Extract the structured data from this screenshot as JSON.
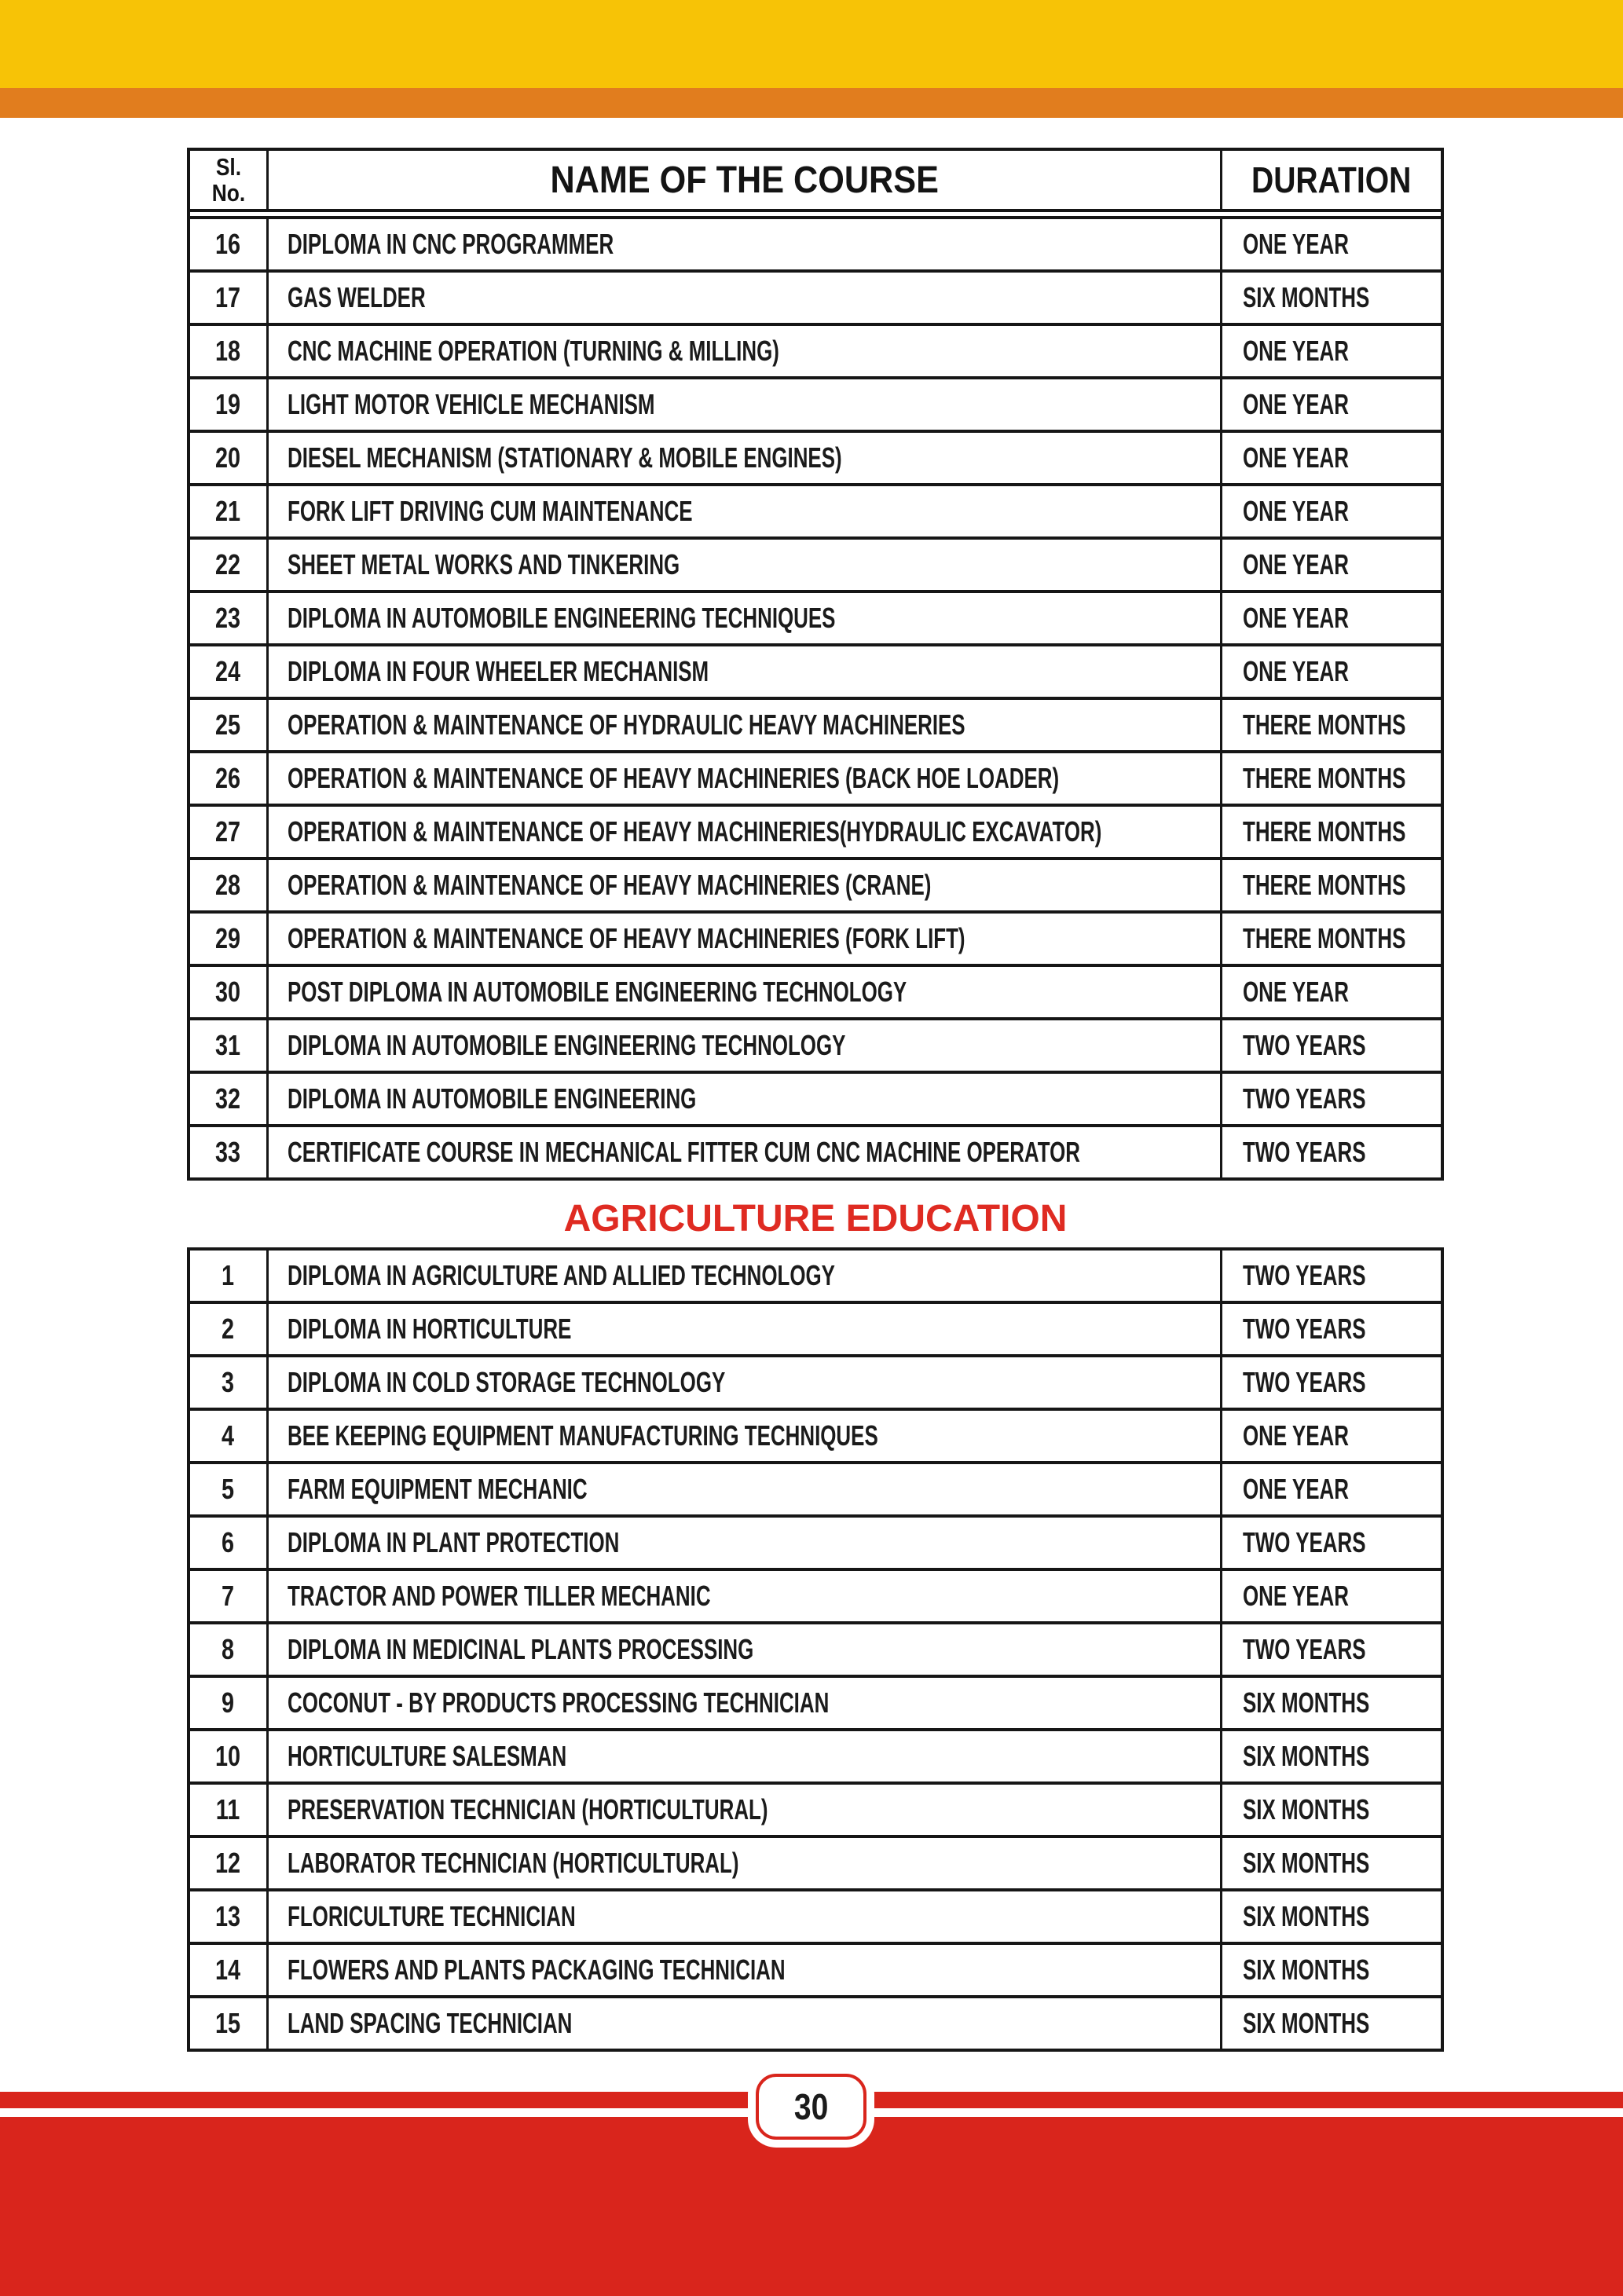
{
  "colors": {
    "band_yellow": "#F7C306",
    "band_orange": "#E17D1E",
    "footer_red": "#D9251C",
    "heading_red": "#DF2B22",
    "table_border": "#161616"
  },
  "table1": {
    "header": {
      "sl_line1": "Sl.",
      "sl_line2": "No.",
      "name": "NAME OF THE COURSE",
      "duration": "DURATION"
    },
    "rows": [
      {
        "no": "16",
        "name": "DIPLOMA IN CNC PROGRAMMER",
        "duration": "ONE YEAR"
      },
      {
        "no": "17",
        "name": "GAS WELDER",
        "duration": "SIX MONTHS"
      },
      {
        "no": "18",
        "name": "CNC MACHINE OPERATION (TURNING & MILLING)",
        "duration": "ONE YEAR"
      },
      {
        "no": "19",
        "name": "LIGHT MOTOR VEHICLE MECHANISM",
        "duration": "ONE YEAR"
      },
      {
        "no": "20",
        "name": "DIESEL MECHANISM (STATIONARY & MOBILE ENGINES)",
        "duration": "ONE YEAR"
      },
      {
        "no": "21",
        "name": "FORK LIFT DRIVING CUM MAINTENANCE",
        "duration": "ONE YEAR"
      },
      {
        "no": "22",
        "name": "SHEET METAL WORKS AND TINKERING",
        "duration": "ONE YEAR"
      },
      {
        "no": "23",
        "name": "DIPLOMA IN AUTOMOBILE ENGINEERING TECHNIQUES",
        "duration": "ONE YEAR"
      },
      {
        "no": "24",
        "name": "DIPLOMA IN FOUR WHEELER MECHANISM",
        "duration": "ONE YEAR"
      },
      {
        "no": "25",
        "name": "OPERATION & MAINTENANCE OF HYDRAULIC HEAVY MACHINERIES",
        "duration": "THERE MONTHS"
      },
      {
        "no": "26",
        "name": "OPERATION & MAINTENANCE OF HEAVY MACHINERIES (BACK HOE LOADER)",
        "duration": "THERE MONTHS"
      },
      {
        "no": "27",
        "name": "OPERATION & MAINTENANCE OF HEAVY MACHINERIES(HYDRAULIC EXCAVATOR)",
        "duration": "THERE MONTHS"
      },
      {
        "no": "28",
        "name": "OPERATION & MAINTENANCE OF HEAVY MACHINERIES (CRANE)",
        "duration": "THERE MONTHS"
      },
      {
        "no": "29",
        "name": "OPERATION & MAINTENANCE OF HEAVY MACHINERIES (FORK LIFT)",
        "duration": "THERE MONTHS"
      },
      {
        "no": "30",
        "name": "POST DIPLOMA IN AUTOMOBILE ENGINEERING TECHNOLOGY",
        "duration": "ONE YEAR"
      },
      {
        "no": "31",
        "name": "DIPLOMA IN AUTOMOBILE ENGINEERING TECHNOLOGY",
        "duration": "TWO YEARS"
      },
      {
        "no": "32",
        "name": "DIPLOMA IN AUTOMOBILE ENGINEERING",
        "duration": "TWO YEARS"
      },
      {
        "no": "33",
        "name": "CERTIFICATE COURSE IN MECHANICAL FITTER CUM CNC MACHINE OPERATOR",
        "duration": "TWO YEARS"
      }
    ]
  },
  "agriculture_section": {
    "title": "AGRICULTURE EDUCATION"
  },
  "table2": {
    "rows": [
      {
        "no": "1",
        "name": "DIPLOMA IN AGRICULTURE AND ALLIED TECHNOLOGY",
        "duration": "TWO YEARS"
      },
      {
        "no": "2",
        "name": "DIPLOMA IN HORTICULTURE",
        "duration": "TWO YEARS"
      },
      {
        "no": "3",
        "name": "DIPLOMA IN COLD STORAGE TECHNOLOGY",
        "duration": "TWO YEARS"
      },
      {
        "no": "4",
        "name": "BEE KEEPING EQUIPMENT MANUFACTURING TECHNIQUES",
        "duration": "ONE YEAR"
      },
      {
        "no": "5",
        "name": "FARM EQUIPMENT MECHANIC",
        "duration": "ONE YEAR"
      },
      {
        "no": "6",
        "name": "DIPLOMA IN PLANT PROTECTION",
        "duration": "TWO YEARS"
      },
      {
        "no": "7",
        "name": "TRACTOR AND POWER TILLER MECHANIC",
        "duration": "ONE YEAR"
      },
      {
        "no": "8",
        "name": "DIPLOMA IN MEDICINAL PLANTS PROCESSING",
        "duration": "TWO YEARS"
      },
      {
        "no": "9",
        "name": "COCONUT - BY PRODUCTS PROCESSING TECHNICIAN",
        "duration": "SIX MONTHS"
      },
      {
        "no": "10",
        "name": "HORTICULTURE SALESMAN",
        "duration": "SIX MONTHS"
      },
      {
        "no": "11",
        "name": "PRESERVATION TECHNICIAN (HORTICULTURAL)",
        "duration": "SIX MONTHS"
      },
      {
        "no": "12",
        "name": "LABORATOR TECHNICIAN (HORTICULTURAL)",
        "duration": "SIX MONTHS"
      },
      {
        "no": "13",
        "name": "FLORICULTURE TECHNICIAN",
        "duration": "SIX MONTHS"
      },
      {
        "no": "14",
        "name": "FLOWERS AND PLANTS PACKAGING TECHNICIAN",
        "duration": "SIX MONTHS"
      },
      {
        "no": "15",
        "name": "LAND SPACING TECHNICIAN",
        "duration": "SIX MONTHS"
      }
    ]
  },
  "footer": {
    "page_number": "30"
  }
}
